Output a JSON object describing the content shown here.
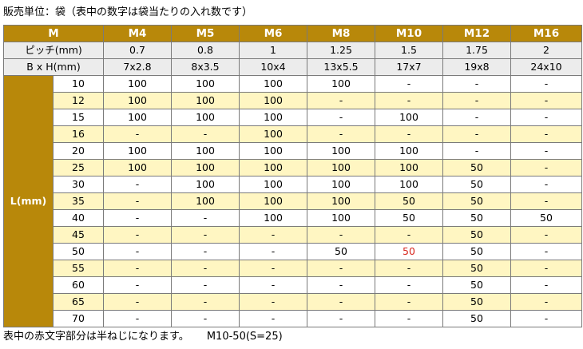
{
  "title": "販売単位：袋（表中の数字は袋当たりの入れ数です）",
  "header": {
    "m_label": "M",
    "sizes": [
      "M4",
      "M5",
      "M6",
      "M8",
      "M10",
      "M12",
      "M16"
    ]
  },
  "pitch": {
    "label": "ピッチ(mm)",
    "values": [
      "0.7",
      "0.8",
      "1",
      "1.25",
      "1.5",
      "1.75",
      "2"
    ]
  },
  "bxh": {
    "label": "B x H(mm)",
    "values": [
      "7x2.8",
      "8x3.5",
      "10x4",
      "13x5.5",
      "17x7",
      "19x8",
      "24x10"
    ]
  },
  "length_label": "L(mm)",
  "rows": [
    {
      "L": "10",
      "cells": [
        "100",
        "100",
        "100",
        "100",
        "-",
        "-",
        "-"
      ]
    },
    {
      "L": "12",
      "cells": [
        "100",
        "100",
        "100",
        "-",
        "-",
        "-",
        "-"
      ]
    },
    {
      "L": "15",
      "cells": [
        "100",
        "100",
        "100",
        "-",
        "100",
        "-",
        "-"
      ]
    },
    {
      "L": "16",
      "cells": [
        "-",
        "-",
        "100",
        "-",
        "-",
        "-",
        "-"
      ]
    },
    {
      "L": "20",
      "cells": [
        "100",
        "100",
        "100",
        "100",
        "100",
        "-",
        "-"
      ]
    },
    {
      "L": "25",
      "cells": [
        "100",
        "100",
        "100",
        "100",
        "100",
        "50",
        "-"
      ]
    },
    {
      "L": "30",
      "cells": [
        "-",
        "100",
        "100",
        "100",
        "100",
        "50",
        "-"
      ]
    },
    {
      "L": "35",
      "cells": [
        "-",
        "100",
        "100",
        "100",
        "50",
        "50",
        "-"
      ]
    },
    {
      "L": "40",
      "cells": [
        "-",
        "-",
        "100",
        "100",
        "50",
        "50",
        "50"
      ]
    },
    {
      "L": "45",
      "cells": [
        "-",
        "-",
        "-",
        "-",
        "-",
        "50",
        "-"
      ]
    },
    {
      "L": "50",
      "cells": [
        "-",
        "-",
        "-",
        "50",
        "50",
        "50",
        "-"
      ]
    },
    {
      "L": "55",
      "cells": [
        "-",
        "-",
        "-",
        "-",
        "-",
        "50",
        "-"
      ]
    },
    {
      "L": "60",
      "cells": [
        "-",
        "-",
        "-",
        "-",
        "-",
        "50",
        "-"
      ]
    },
    {
      "L": "65",
      "cells": [
        "-",
        "-",
        "-",
        "-",
        "-",
        "50",
        "-"
      ]
    },
    {
      "L": "70",
      "cells": [
        "-",
        "-",
        "-",
        "-",
        "-",
        "50",
        "-"
      ]
    }
  ],
  "red_cells": [
    [
      10,
      4
    ]
  ],
  "footer": {
    "note": "表中の赤文字部分は半ねじになります。",
    "example": "M10-50(S=25)"
  },
  "colors": {
    "header_gold": "#b8880a",
    "row_yellow": "#fff6c2",
    "sub_gray": "#ececec",
    "red_text": "#d7261d"
  }
}
